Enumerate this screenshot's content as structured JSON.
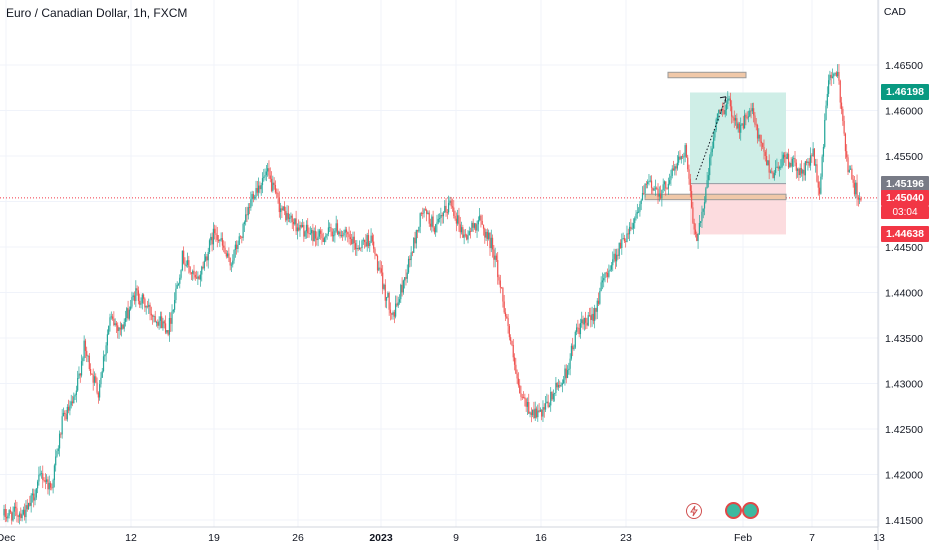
{
  "header": {
    "title": "Euro / Canadian Dollar, 1h, FXCM",
    "currency": "CAD"
  },
  "price_tags": {
    "target": "1.46198",
    "entry": "1.45196",
    "current": "1.45040",
    "countdown": "03:04",
    "stop": "1.44638"
  },
  "colors": {
    "up": "#26a69a",
    "down": "#ef5350",
    "target_tag": "#089981",
    "entry_tag": "#787b86",
    "current_tag": "#f23645",
    "stop_tag": "#f23645",
    "zone": "#f0c8a8"
  },
  "icons": [
    "lightning-icon",
    "indicator-icon",
    "indicator-icon"
  ],
  "chart_data": {
    "type": "candlestick",
    "symbol": "EUR/CAD",
    "timeframe": "1h",
    "x_ticks": [
      "Dec",
      "12",
      "19",
      "26",
      "2023",
      "9",
      "16",
      "23",
      "Feb",
      "7",
      "13"
    ],
    "y_ticks": [
      "1.46500",
      "1.46000",
      "1.45500",
      "1.45000",
      "1.44500",
      "1.44000",
      "1.43500",
      "1.43000",
      "1.42500",
      "1.42000",
      "1.41500"
    ],
    "ylim": [
      1.4145,
      1.47
    ],
    "anchors": [
      [
        0,
        1.4155
      ],
      [
        1,
        1.416
      ],
      [
        1.6,
        1.42
      ],
      [
        2,
        1.4185
      ],
      [
        2.5,
        1.426
      ],
      [
        3,
        1.428
      ],
      [
        3.4,
        1.434
      ],
      [
        4,
        1.429
      ],
      [
        4.5,
        1.437
      ],
      [
        5,
        1.436
      ],
      [
        5.6,
        1.44
      ],
      [
        6.2,
        1.438
      ],
      [
        7,
        1.436
      ],
      [
        7.6,
        1.444
      ],
      [
        8.2,
        1.441
      ],
      [
        9,
        1.447
      ],
      [
        9.6,
        1.443
      ],
      [
        10.2,
        1.447
      ],
      [
        10.6,
        1.451
      ],
      [
        11.2,
        1.453
      ],
      [
        11.8,
        1.449
      ],
      [
        12.6,
        1.447
      ],
      [
        13.4,
        1.446
      ],
      [
        14.2,
        1.447
      ],
      [
        15,
        1.445
      ],
      [
        15.6,
        1.446
      ],
      [
        16.2,
        1.44
      ],
      [
        16.6,
        1.4375
      ],
      [
        17.2,
        1.443
      ],
      [
        17.8,
        1.449
      ],
      [
        18.4,
        1.447
      ],
      [
        19,
        1.45
      ],
      [
        19.6,
        1.446
      ],
      [
        20.2,
        1.448
      ],
      [
        20.8,
        1.445
      ],
      [
        21.4,
        1.437
      ],
      [
        21.9,
        1.429
      ],
      [
        22.4,
        1.427
      ],
      [
        22.9,
        1.4265
      ],
      [
        23.4,
        1.429
      ],
      [
        23.9,
        1.431
      ],
      [
        24.4,
        1.436
      ],
      [
        25,
        1.437
      ],
      [
        25.6,
        1.442
      ],
      [
        26.2,
        1.445
      ],
      [
        26.8,
        1.448
      ],
      [
        27.4,
        1.452
      ],
      [
        28,
        1.451
      ],
      [
        28.6,
        1.454
      ],
      [
        29,
        1.456
      ],
      [
        29.4,
        1.4455
      ],
      [
        29.8,
        1.45
      ],
      [
        30.3,
        1.459
      ],
      [
        30.8,
        1.461
      ],
      [
        31.3,
        1.458
      ],
      [
        31.8,
        1.46
      ],
      [
        32.2,
        1.456
      ],
      [
        32.7,
        1.453
      ],
      [
        33.2,
        1.455
      ],
      [
        33.6,
        1.454
      ],
      [
        34,
        1.453
      ],
      [
        34.4,
        1.4555
      ],
      [
        34.7,
        1.451
      ],
      [
        35.1,
        1.464
      ],
      [
        35.5,
        1.4635
      ],
      [
        35.9,
        1.454
      ],
      [
        36.2,
        1.4515
      ],
      [
        36.5,
        1.4504
      ]
    ],
    "overlays": {
      "resistance_zone": [
        1.4636,
        1.4642
      ],
      "support_zone": [
        1.4502,
        1.4508
      ],
      "target": 1.46198,
      "entry": 1.45196,
      "stop": 1.44638,
      "current": 1.4504
    }
  }
}
